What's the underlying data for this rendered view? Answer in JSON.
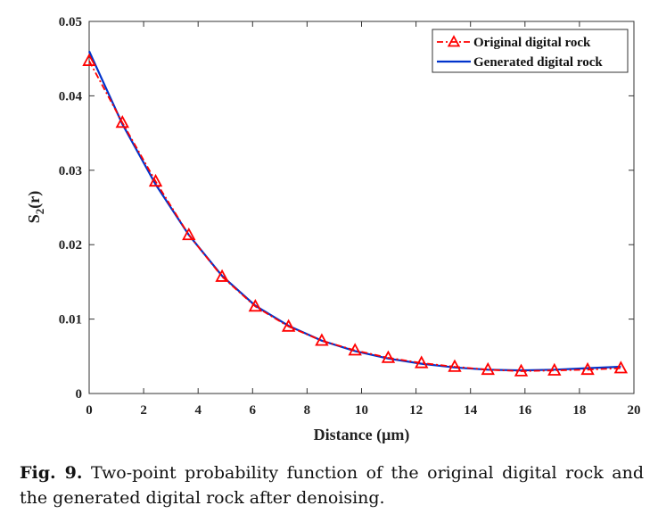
{
  "chart_data": {
    "type": "line",
    "xlabel": "Distance (μm)",
    "ylabel": "S",
    "ylabel_sub": "2",
    "ylabel_suffix": "(r)",
    "xlim": [
      0,
      20
    ],
    "ylim": [
      0,
      0.05
    ],
    "xticks": [
      "0",
      "2",
      "4",
      "6",
      "8",
      "10",
      "12",
      "14",
      "16",
      "18",
      "20"
    ],
    "yticks": [
      "0",
      "0.01",
      "0.02",
      "0.03",
      "0.04",
      "0.05"
    ],
    "legend_position": "top-right",
    "series": [
      {
        "name": "Original digital rock",
        "color": "#ff0000",
        "style": "dash-dot",
        "marker": "triangle",
        "x": [
          0,
          1.22,
          2.44,
          3.66,
          4.88,
          6.1,
          7.32,
          8.54,
          9.76,
          10.98,
          12.2,
          13.42,
          14.64,
          15.86,
          17.08,
          18.3,
          19.52
        ],
        "y": [
          0.0447,
          0.0364,
          0.0285,
          0.0213,
          0.0157,
          0.0117,
          0.009,
          0.0071,
          0.0058,
          0.0048,
          0.0041,
          0.0036,
          0.0032,
          0.003,
          0.0031,
          0.0032,
          0.0034
        ]
      },
      {
        "name": "Generated digital rock",
        "color": "#0033cc",
        "style": "solid",
        "marker": "none",
        "x": [
          0,
          1.22,
          2.44,
          3.66,
          4.88,
          6.1,
          7.32,
          8.54,
          9.76,
          10.98,
          12.2,
          13.42,
          14.64,
          15.86,
          17.08,
          18.3,
          19.52
        ],
        "y": [
          0.046,
          0.0362,
          0.0281,
          0.0213,
          0.0158,
          0.0118,
          0.0091,
          0.0071,
          0.0057,
          0.0047,
          0.004,
          0.0035,
          0.0032,
          0.0031,
          0.0032,
          0.0034,
          0.0036
        ]
      }
    ]
  },
  "caption": {
    "label": "Fig. 9.",
    "text": "Two-point probability function of the original digital rock and the generated digital rock after denoising."
  }
}
